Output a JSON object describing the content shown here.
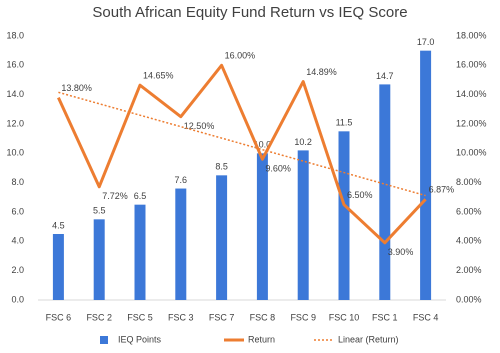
{
  "chart_data": {
    "type": "bar",
    "title": "South African Equity Fund Return vs IEQ Score",
    "categories": [
      "FSC 6",
      "FSC 2",
      "FSC 5",
      "FSC 3",
      "FSC 7",
      "FSC 8",
      "FSC 9",
      "FSC 10",
      "FSC 1",
      "FSC 4"
    ],
    "series": [
      {
        "name": "IEQ Points",
        "type": "bar",
        "color": "#3c78d8",
        "values": [
          4.5,
          5.5,
          6.5,
          7.6,
          8.5,
          10.0,
          10.2,
          11.5,
          14.7,
          17.0
        ],
        "value_labels": [
          "4.5",
          "5.5",
          "6.5",
          "7.6",
          "8.5",
          "10.0",
          "10.2",
          "11.5",
          "14.7",
          "17.0"
        ]
      },
      {
        "name": "Return",
        "type": "line",
        "axis": "y2",
        "color": "#ed7d31",
        "values": [
          13.8,
          7.72,
          14.65,
          12.5,
          16.0,
          9.6,
          14.89,
          6.5,
          3.9,
          6.87
        ],
        "value_labels": [
          "13.80%",
          "7.72%",
          "14.65%",
          "12.50%",
          "16.00%",
          "9.60%",
          "14.89%",
          "6.50%",
          "3.90%",
          "6.87%"
        ]
      },
      {
        "name": "Linear (Return)",
        "type": "trend",
        "axis": "y2",
        "color": "#ed7d31",
        "values": [
          14.16,
          13.38,
          12.6,
          11.82,
          11.04,
          10.25,
          9.47,
          8.69,
          7.9,
          7.12
        ]
      }
    ],
    "ylim": [
      0,
      18
    ],
    "yticks": [
      {
        "value": 0,
        "label": "0.0"
      },
      {
        "value": 2,
        "label": "2.0"
      },
      {
        "value": 4,
        "label": "4.0"
      },
      {
        "value": 6,
        "label": "6.0"
      },
      {
        "value": 8,
        "label": "8.0"
      },
      {
        "value": 10,
        "label": "10.0"
      },
      {
        "value": 12,
        "label": "12.0"
      },
      {
        "value": 14,
        "label": "14.0"
      },
      {
        "value": 16,
        "label": "16.0"
      },
      {
        "value": 18,
        "label": "18.0"
      }
    ],
    "y2lim": [
      0,
      18
    ],
    "y2ticks": [
      {
        "value": 0,
        "label": "0.00%"
      },
      {
        "value": 2,
        "label": "2.00%"
      },
      {
        "value": 4,
        "label": "4.00%"
      },
      {
        "value": 6,
        "label": "6.00%"
      },
      {
        "value": 8,
        "label": "8.00%"
      },
      {
        "value": 10,
        "label": "10.00%"
      },
      {
        "value": 12,
        "label": "12.00%"
      },
      {
        "value": 14,
        "label": "14.00%"
      },
      {
        "value": 16,
        "label": "16.00%"
      },
      {
        "value": 18,
        "label": "18.00%"
      }
    ],
    "legend": "bottom"
  }
}
